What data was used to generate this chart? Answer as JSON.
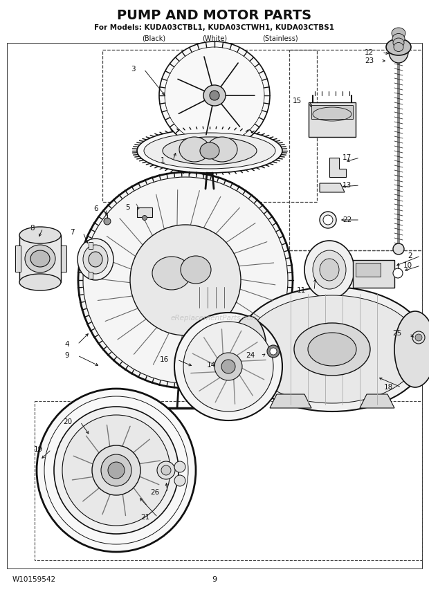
{
  "title": "PUMP AND MOTOR PARTS",
  "subtitle": "For Models: KUDA03CTBL1, KUDA03CTWH1, KUDA03CTBS1",
  "col1": "(Black)",
  "col2": "(White)",
  "col3": "(Stainless)",
  "model_code": "W10159542",
  "page_number": "9",
  "bg_color": "#ffffff",
  "lc": "#111111",
  "tc": "#111111",
  "watermark": "eReplacementParts.com",
  "figsize": [
    6.2,
    8.56
  ],
  "dpi": 100
}
